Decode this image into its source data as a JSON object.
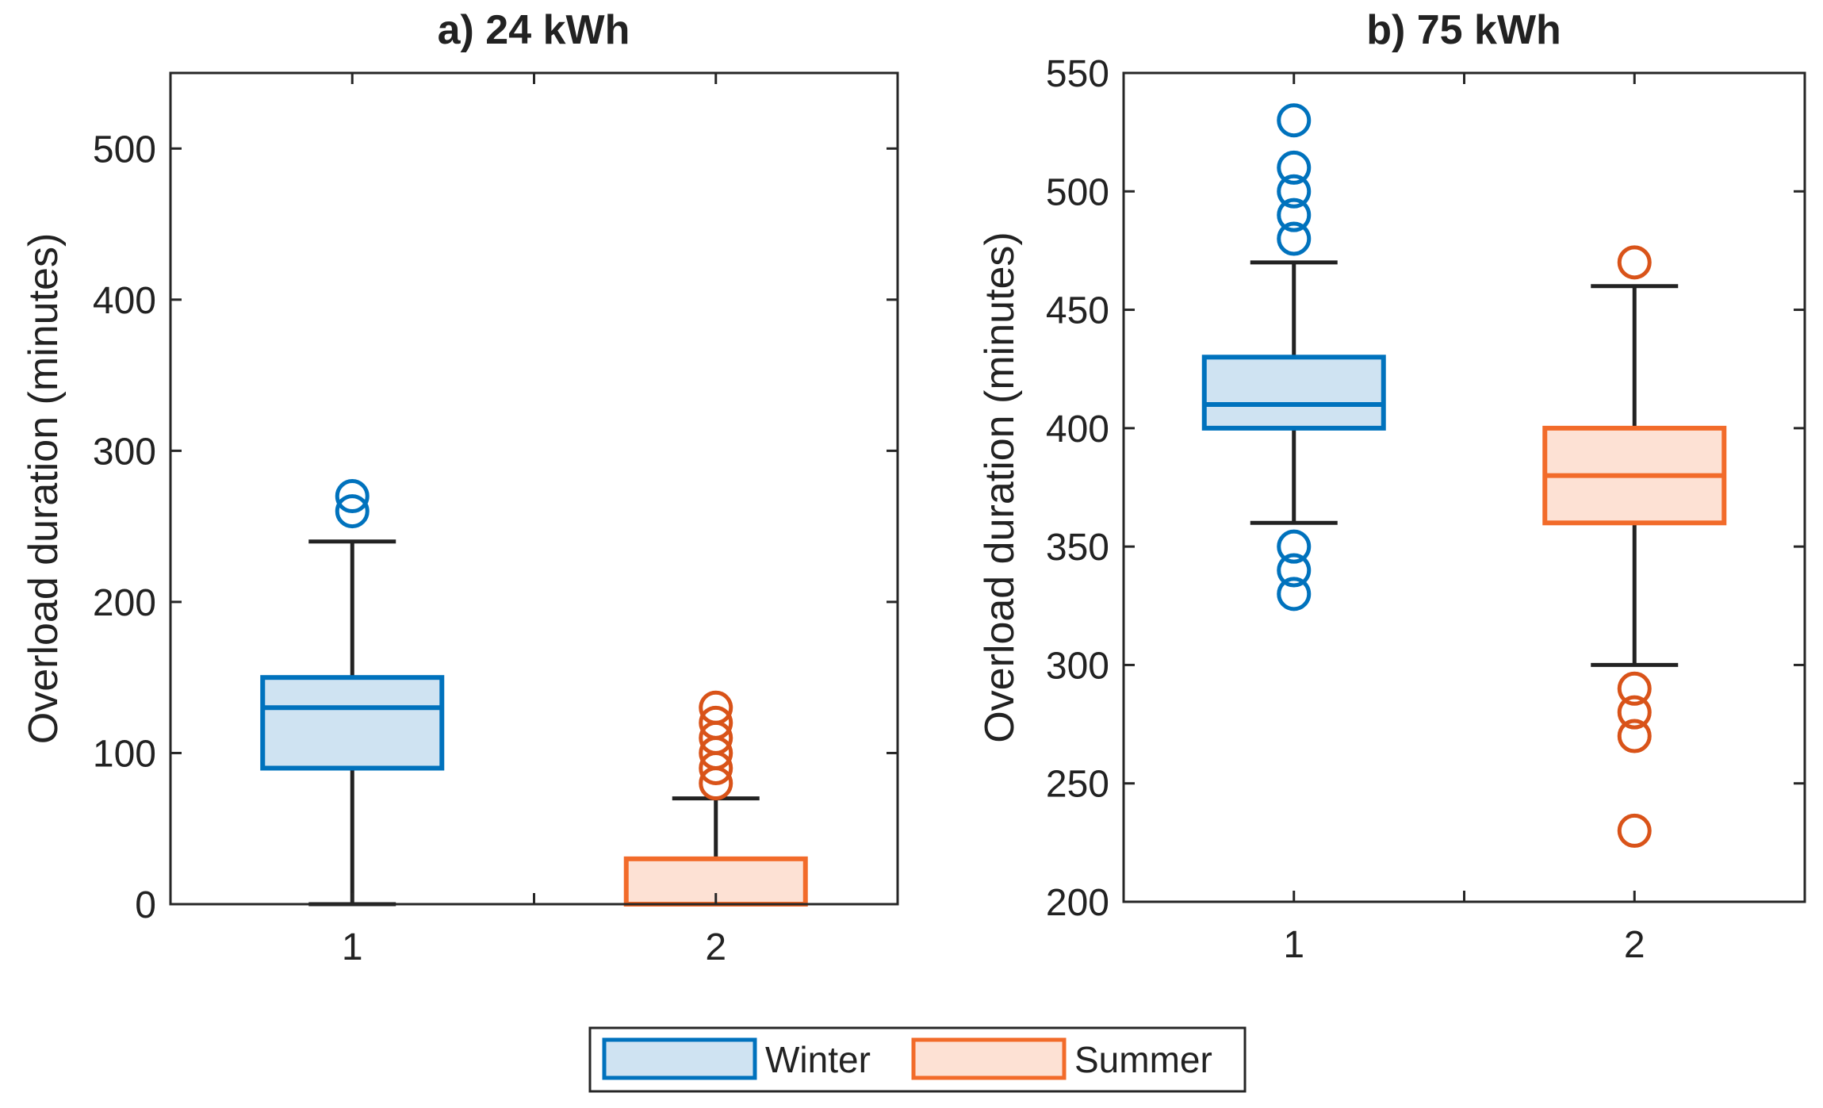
{
  "colors": {
    "winter_edge": "#0072BD",
    "winter_fill": "#CFE3F2",
    "summer_edge": "#F26B2A",
    "summer_fill": "#FDE1D4",
    "summer_outlier": "#D95319",
    "axis": "#262626",
    "whisker": "#222222"
  },
  "legend": {
    "winter": "Winter",
    "summer": "Summer"
  },
  "chart_data": [
    {
      "type": "box",
      "title": "a) 24 kWh",
      "ylabel": "Overload duration (minutes)",
      "xlabel": "",
      "ylim": [
        0,
        550
      ],
      "yticks": [
        0,
        100,
        200,
        300,
        400,
        500
      ],
      "categories": [
        "1",
        "2"
      ],
      "boxes": [
        {
          "series": "Winter",
          "category": "1",
          "whisker_low": 0,
          "q1": 90,
          "median": 130,
          "q3": 150,
          "whisker_high": 240,
          "outliers": [
            260,
            270
          ]
        },
        {
          "series": "Summer",
          "category": "2",
          "whisker_low": 0,
          "q1": 0,
          "median": 0,
          "q3": 30,
          "whisker_high": 70,
          "outliers": [
            80,
            90,
            100,
            110,
            120,
            130
          ]
        }
      ]
    },
    {
      "type": "box",
      "title": "b) 75 kWh",
      "ylabel": "Overload duration (minutes)",
      "xlabel": "",
      "ylim": [
        200,
        550
      ],
      "yticks": [
        200,
        250,
        300,
        350,
        400,
        450,
        500,
        550
      ],
      "categories": [
        "1",
        "2"
      ],
      "boxes": [
        {
          "series": "Winter",
          "category": "1",
          "whisker_low": 360,
          "q1": 400,
          "median": 410,
          "q3": 430,
          "whisker_high": 470,
          "outliers": [
            330,
            340,
            350,
            480,
            490,
            500,
            510,
            530
          ]
        },
        {
          "series": "Summer",
          "category": "2",
          "whisker_low": 300,
          "q1": 360,
          "median": 380,
          "q3": 400,
          "whisker_high": 460,
          "outliers": [
            230,
            270,
            280,
            290,
            470
          ]
        }
      ]
    }
  ]
}
